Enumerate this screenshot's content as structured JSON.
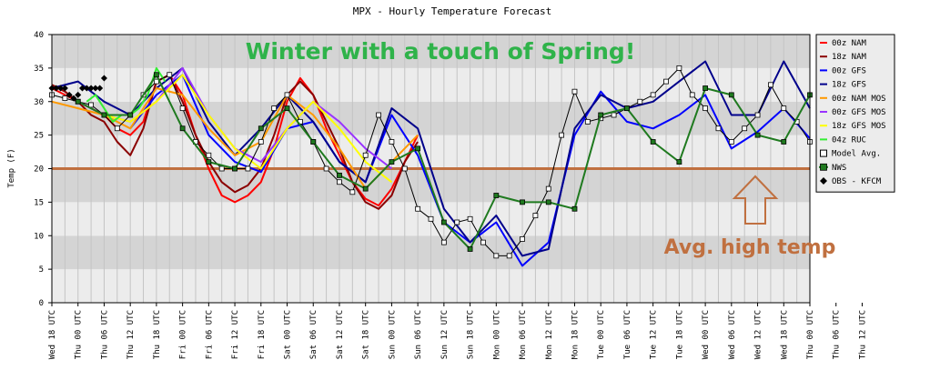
{
  "chart_data": {
    "type": "line",
    "title": "MPX - Hourly Temperature Forecast",
    "ylabel": "Temp (F)",
    "xlabel": "",
    "ylim": [
      0,
      40
    ],
    "yticks": [
      0,
      5,
      10,
      15,
      20,
      25,
      30,
      35,
      40
    ],
    "xlim": [
      0,
      174
    ],
    "grid": true,
    "legend_position": "right",
    "categories": [
      "Wed 18 UTC",
      "Thu 00 UTC",
      "Thu 06 UTC",
      "Thu 12 UTC",
      "Thu 18 UTC",
      "Fri 00 UTC",
      "Fri 06 UTC",
      "Fri 12 UTC",
      "Fri 18 UTC",
      "Sat 00 UTC",
      "Sat 06 UTC",
      "Sat 12 UTC",
      "Sat 18 UTC",
      "Sun 00 UTC",
      "Sun 06 UTC",
      "Sun 12 UTC",
      "Sun 18 UTC",
      "Mon 00 UTC",
      "Mon 06 UTC",
      "Mon 12 UTC",
      "Mon 18 UTC",
      "Tue 00 UTC",
      "Tue 06 UTC",
      "Tue 12 UTC",
      "Tue 18 UTC",
      "Wed 00 UTC",
      "Wed 06 UTC",
      "Wed 12 UTC",
      "Wed 18 UTC",
      "Thu 00 UTC",
      "Thu 06 UTC",
      "Thu 12 UTC"
    ],
    "series": [
      {
        "name": "00z NAM",
        "color": "#ff0000",
        "marker": "none",
        "x": [
          0,
          3,
          6,
          9,
          12,
          15,
          18,
          21,
          24,
          27,
          30,
          33,
          36,
          39,
          42,
          45,
          48,
          51,
          54,
          57,
          60,
          63,
          66,
          69,
          72,
          75,
          78,
          81,
          84
        ],
        "y": [
          32,
          31,
          30,
          29,
          28,
          26,
          25,
          27,
          33,
          34,
          31,
          25,
          20,
          16,
          15,
          16,
          18,
          23,
          30,
          33.5,
          31,
          26,
          22,
          18,
          15.5,
          14.5,
          17,
          21,
          25
        ]
      },
      {
        "name": "18z NAM",
        "color": "#8b0000",
        "marker": "none",
        "x": [
          0,
          3,
          6,
          9,
          12,
          15,
          18,
          21,
          24,
          27,
          30,
          33,
          36,
          39,
          42,
          45,
          48,
          51,
          54,
          57,
          60,
          63,
          66,
          69,
          72,
          75,
          78,
          81,
          84
        ],
        "y": [
          32.5,
          31.5,
          30,
          28,
          27,
          24,
          22,
          26,
          33,
          34,
          30,
          25,
          21,
          18,
          16.5,
          17.5,
          20,
          25,
          31,
          33,
          31,
          27,
          23,
          18,
          15,
          14,
          16,
          21,
          24
        ]
      },
      {
        "name": "00z GFS",
        "color": "#0000ff",
        "marker": "none",
        "x": [
          18,
          24,
          30,
          36,
          42,
          48,
          54,
          60,
          66,
          72,
          78,
          84,
          90,
          96,
          102,
          108,
          114,
          120,
          126,
          132,
          138,
          144,
          150,
          156,
          162,
          168,
          174
        ],
        "y": [
          26,
          31,
          34,
          25,
          21,
          19.5,
          26,
          27,
          21,
          18,
          28,
          22,
          12,
          9,
          12,
          5.5,
          9,
          25,
          31.5,
          27,
          26,
          28,
          31,
          23,
          25.5,
          29,
          24.5
        ]
      },
      {
        "name": "18z GFS",
        "color": "#00008b",
        "marker": "none",
        "x": [
          0,
          6,
          12,
          18,
          24,
          30,
          36,
          42,
          48,
          54,
          60,
          66,
          72,
          78,
          84,
          90,
          96,
          102,
          108,
          114,
          120,
          126,
          132,
          138,
          144,
          150,
          156,
          162,
          168,
          174
        ],
        "y": [
          32,
          33,
          30,
          28,
          32,
          35,
          27,
          22,
          26,
          31,
          27,
          21,
          18,
          29,
          26,
          14,
          9,
          13,
          7,
          8,
          26,
          31,
          29,
          30,
          33,
          36,
          28,
          28,
          36,
          29
        ]
      },
      {
        "name": "00z NAM MOS",
        "color": "#ff9900",
        "marker": "none",
        "x": [
          0,
          6,
          12,
          18,
          24,
          30,
          36,
          42,
          48,
          54,
          60,
          66,
          72,
          78,
          84
        ],
        "y": [
          30,
          29,
          28,
          26,
          32,
          31,
          26,
          22,
          24,
          31,
          28,
          23,
          17,
          21,
          25
        ]
      },
      {
        "name": "00z GFS MOS",
        "color": "#9933ff",
        "marker": "none",
        "x": [
          6,
          12,
          18,
          24,
          30,
          36,
          42,
          48,
          54,
          60,
          66,
          72,
          78
        ],
        "y": [
          30,
          28,
          27,
          30,
          35,
          28,
          23,
          21,
          26,
          30,
          27,
          23,
          20
        ]
      },
      {
        "name": "18z GFS MOS",
        "color": "#ffff00",
        "marker": "none",
        "x": [
          12,
          18,
          24,
          30,
          36,
          42,
          48,
          54,
          60,
          66,
          72,
          78
        ],
        "y": [
          28,
          27,
          30,
          34,
          28,
          23,
          20,
          26,
          30,
          26,
          21,
          18
        ]
      },
      {
        "name": "04z RUC",
        "color": "#33ee33",
        "marker": "none",
        "x": [
          8,
          10,
          12,
          14,
          16,
          18,
          20,
          22,
          24,
          26
        ],
        "y": [
          30,
          31,
          29,
          27,
          28,
          28,
          29,
          31,
          35,
          33
        ]
      },
      {
        "name": "Model Avg.",
        "color": "#000000",
        "marker": "square-open",
        "x": [
          0,
          3,
          6,
          9,
          12,
          15,
          18,
          21,
          24,
          27,
          30,
          33,
          36,
          39,
          42,
          45,
          48,
          51,
          54,
          57,
          60,
          63,
          66,
          69,
          72,
          75,
          78,
          81,
          84,
          87,
          90,
          93,
          96,
          99,
          102,
          105,
          108,
          111,
          114,
          117,
          120,
          123,
          126,
          129,
          132,
          135,
          138,
          141,
          144,
          147,
          150,
          153,
          156,
          159,
          162,
          165,
          168,
          171,
          174
        ],
        "y": [
          31,
          30.5,
          30,
          29.5,
          28,
          26,
          28,
          31,
          33,
          34,
          29,
          24,
          22,
          20,
          20,
          20,
          24,
          29,
          31,
          27,
          24,
          20,
          18,
          16.5,
          22,
          28,
          24,
          20,
          14,
          12.5,
          9,
          12,
          12.5,
          9,
          7,
          7,
          9.5,
          13,
          17,
          25,
          31.5,
          27,
          27.5,
          28,
          29,
          30,
          31,
          33,
          35,
          31,
          29,
          26,
          24,
          26,
          28,
          32.5,
          29,
          27,
          24
        ]
      },
      {
        "name": "NWS",
        "color": "#1f7a1f",
        "marker": "square-filled",
        "x": [
          6,
          12,
          18,
          24,
          30,
          36,
          42,
          48,
          54,
          60,
          66,
          72,
          78,
          84,
          90,
          96,
          102,
          108,
          114,
          120,
          126,
          132,
          138,
          144,
          150,
          156,
          162,
          168,
          174
        ],
        "y": [
          30,
          28,
          28,
          34,
          26,
          21,
          20,
          26,
          29,
          24,
          19,
          17,
          21,
          23,
          12,
          8,
          16,
          15,
          15,
          14,
          28,
          29,
          24,
          21,
          32,
          31,
          25,
          24,
          31
        ]
      },
      {
        "name": "OBS - KFCM",
        "color": "#000000",
        "marker": "diamond-filled",
        "x": [
          0,
          1,
          2,
          3,
          4,
          5,
          6,
          7,
          8,
          9,
          10,
          11,
          12
        ],
        "y": [
          32,
          32,
          32,
          32,
          31,
          30.5,
          31,
          32,
          32,
          32,
          32,
          32,
          33.5
        ]
      }
    ],
    "reference_lines": [
      {
        "name": "Avg. high temp",
        "y": 20,
        "color": "#c07040"
      }
    ],
    "annotations": [
      {
        "text": "Winter with a touch of Spring!",
        "color": "#2fb34a"
      },
      {
        "text": "Avg. high temp",
        "color": "#c07040",
        "arrow": "up"
      }
    ]
  }
}
